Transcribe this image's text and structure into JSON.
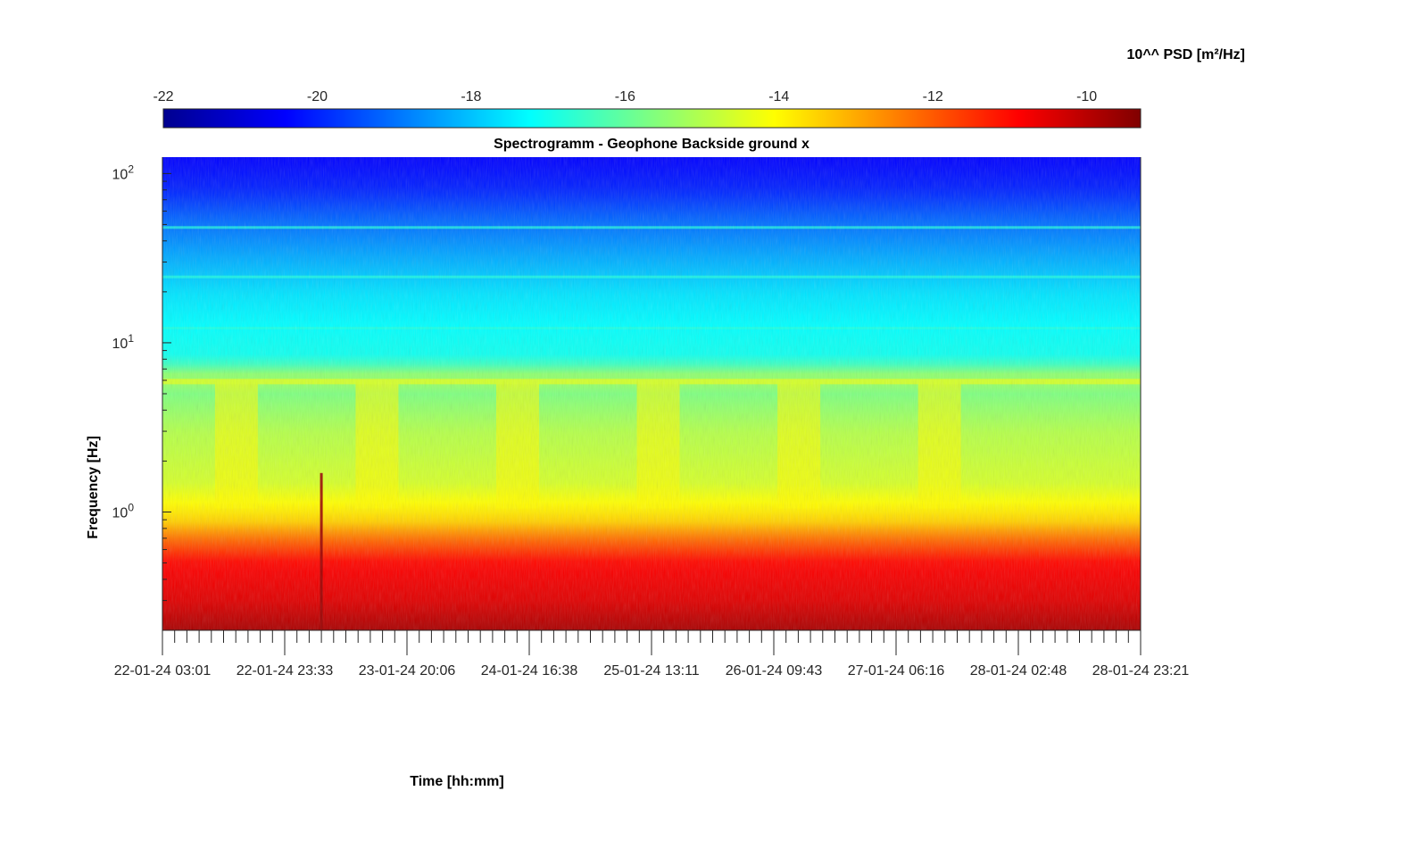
{
  "chart_data": {
    "type": "heatmap",
    "title": "Spectrogramm - Geophone Backside ground x",
    "xlabel": "Time [hh:mm]",
    "ylabel": "Frequency [Hz]",
    "colorbar_label": "10^^ PSD [m²/Hz]",
    "colormap": "jet",
    "clim": [
      -22,
      -9.3
    ],
    "colorbar_ticks": [
      "-22",
      "-20",
      "-18",
      "-16",
      "-14",
      "-12",
      "-10"
    ],
    "colorbar_tick_values": [
      -22,
      -20,
      -18,
      -16,
      -14,
      -12,
      -10
    ],
    "x_tick_labels": [
      "22-01-24 03:01",
      "22-01-24 23:33",
      "23-01-24 20:06",
      "24-01-24 16:38",
      "25-01-24 13:11",
      "26-01-24 09:43",
      "27-01-24 06:16",
      "28-01-24 02:48",
      "28-01-24 23:21"
    ],
    "y_scale": "log",
    "ylim": [
      0.2,
      125
    ],
    "y_tick_labels": [
      {
        "base": "10",
        "exp": "0"
      },
      {
        "base": "10",
        "exp": "1"
      },
      {
        "base": "10",
        "exp": "2"
      }
    ],
    "y_tick_values": [
      1,
      10,
      100
    ],
    "psd_profile_vs_frequency": [
      {
        "f": 0.2,
        "psd": -9.8
      },
      {
        "f": 0.3,
        "psd": -10.5
      },
      {
        "f": 0.5,
        "psd": -10.9
      },
      {
        "f": 0.7,
        "psd": -12.3
      },
      {
        "f": 0.9,
        "psd": -13.6
      },
      {
        "f": 1.5,
        "psd": -14.6
      },
      {
        "f": 3,
        "psd": -15.0
      },
      {
        "f": 5.5,
        "psd": -15.8
      },
      {
        "f": 6,
        "psd": -14.8
      },
      {
        "f": 8,
        "psd": -17.0
      },
      {
        "f": 12,
        "psd": -17.2
      },
      {
        "f": 20,
        "psd": -17.6
      },
      {
        "f": 30,
        "psd": -18.2
      },
      {
        "f": 50,
        "psd": -19.0
      },
      {
        "f": 80,
        "psd": -20.0
      },
      {
        "f": 120,
        "psd": -20.4
      }
    ],
    "narrowband_lines_hz": [
      5.9,
      12.2,
      24.5,
      48
    ],
    "transient_event_time_index": 1.3
  }
}
